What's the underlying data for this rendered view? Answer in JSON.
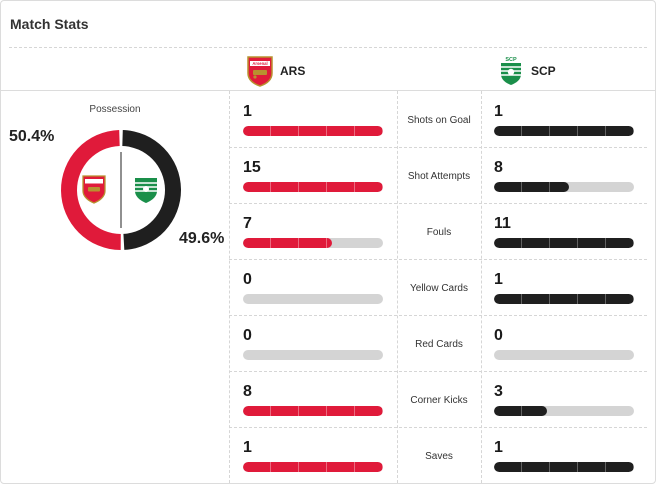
{
  "header": {
    "title": "Match Stats"
  },
  "teams": {
    "home": {
      "abbr": "ARS",
      "crest_text": "Arsenal",
      "color": "#e01a3a"
    },
    "away": {
      "abbr": "SCP",
      "crest_text": "SCP",
      "color": "#1f1f1f",
      "accent": "#1a8f4a"
    }
  },
  "possession": {
    "label": "Possession",
    "home_pct_text": "50.4%",
    "away_pct_text": "49.6%",
    "home_value": 50.4,
    "away_value": 49.6
  },
  "stats": [
    {
      "label": "Shots on Goal",
      "home": 1,
      "away": 1,
      "home_text": "1",
      "away_text": "1"
    },
    {
      "label": "Shot Attempts",
      "home": 15,
      "away": 8,
      "home_text": "15",
      "away_text": "8"
    },
    {
      "label": "Fouls",
      "home": 7,
      "away": 11,
      "home_text": "7",
      "away_text": "11"
    },
    {
      "label": "Yellow Cards",
      "home": 0,
      "away": 1,
      "home_text": "0",
      "away_text": "1"
    },
    {
      "label": "Red Cards",
      "home": 0,
      "away": 0,
      "home_text": "0",
      "away_text": "0"
    },
    {
      "label": "Corner Kicks",
      "home": 8,
      "away": 3,
      "home_text": "8",
      "away_text": "3"
    },
    {
      "label": "Saves",
      "home": 1,
      "away": 1,
      "home_text": "1",
      "away_text": "1"
    }
  ],
  "colors": {
    "bar_empty": "#d4d4d4",
    "divider": "#d6d6d6"
  }
}
